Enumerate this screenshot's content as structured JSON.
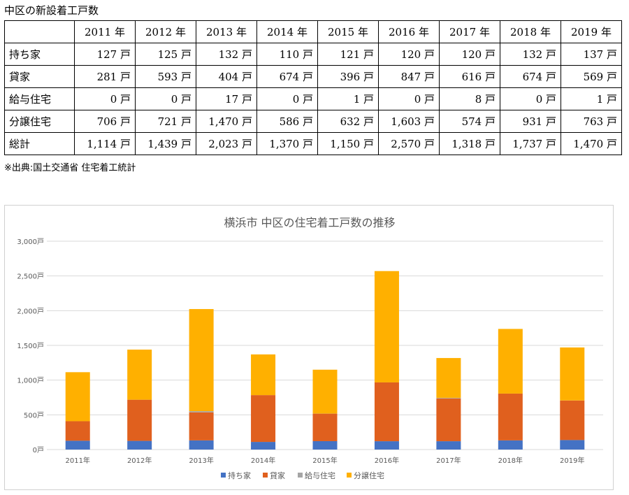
{
  "table_title": "中区の新設着工戸数",
  "table": {
    "header": [
      "",
      "2011 年",
      "2012 年",
      "2013 年",
      "2014 年",
      "2015 年",
      "2016 年",
      "2017 年",
      "2018 年",
      "2019 年"
    ],
    "rows": [
      {
        "label": "持ち家",
        "cells": [
          "127 戸",
          "125 戸",
          "132 戸",
          "110 戸",
          "121 戸",
          "120 戸",
          "120 戸",
          "132 戸",
          "137 戸"
        ]
      },
      {
        "label": "貸家",
        "cells": [
          "281 戸",
          "593 戸",
          "404 戸",
          "674 戸",
          "396 戸",
          "847 戸",
          "616 戸",
          "674 戸",
          "569 戸"
        ]
      },
      {
        "label": "給与住宅",
        "cells": [
          "0 戸",
          "0 戸",
          "17 戸",
          "0 戸",
          "1 戸",
          "0 戸",
          "8 戸",
          "0 戸",
          "1 戸"
        ]
      },
      {
        "label": "分譲住宅",
        "cells": [
          "706 戸",
          "721 戸",
          "1,470 戸",
          "586 戸",
          "632 戸",
          "1,603 戸",
          "574 戸",
          "931 戸",
          "763 戸"
        ]
      },
      {
        "label": "総計",
        "cells": [
          "1,114 戸",
          "1,439 戸",
          "2,023 戸",
          "1,370 戸",
          "1,150 戸",
          "2,570 戸",
          "1,318 戸",
          "1,737 戸",
          "1,470 戸"
        ]
      }
    ]
  },
  "source_note": "※出典:国土交通省 住宅着工統計",
  "chart_data": {
    "type": "bar",
    "stacked": true,
    "title": "横浜市 中区の住宅着工戸数の推移",
    "categories": [
      "2011年",
      "2012年",
      "2013年",
      "2014年",
      "2015年",
      "2016年",
      "2017年",
      "2018年",
      "2019年"
    ],
    "series": [
      {
        "name": "持ち家",
        "color": "#4472c4",
        "values": [
          127,
          125,
          132,
          110,
          121,
          120,
          120,
          132,
          137
        ]
      },
      {
        "name": "貸家",
        "color": "#e0601e",
        "values": [
          281,
          593,
          404,
          674,
          396,
          847,
          616,
          674,
          569
        ]
      },
      {
        "name": "給与住宅",
        "color": "#a5a5a5",
        "values": [
          0,
          0,
          17,
          0,
          1,
          0,
          8,
          0,
          1
        ]
      },
      {
        "name": "分譲住宅",
        "color": "#ffb000",
        "values": [
          706,
          721,
          1470,
          586,
          632,
          1603,
          574,
          931,
          763
        ]
      }
    ],
    "ylim": [
      0,
      3000
    ],
    "yticks": [
      0,
      500,
      1000,
      1500,
      2000,
      2500,
      3000
    ],
    "ytick_labels": [
      "0戸",
      "500戸",
      "1,000戸",
      "1,500戸",
      "2,000戸",
      "2,500戸",
      "3,000戸"
    ],
    "grid": true,
    "legend_position": "bottom"
  }
}
